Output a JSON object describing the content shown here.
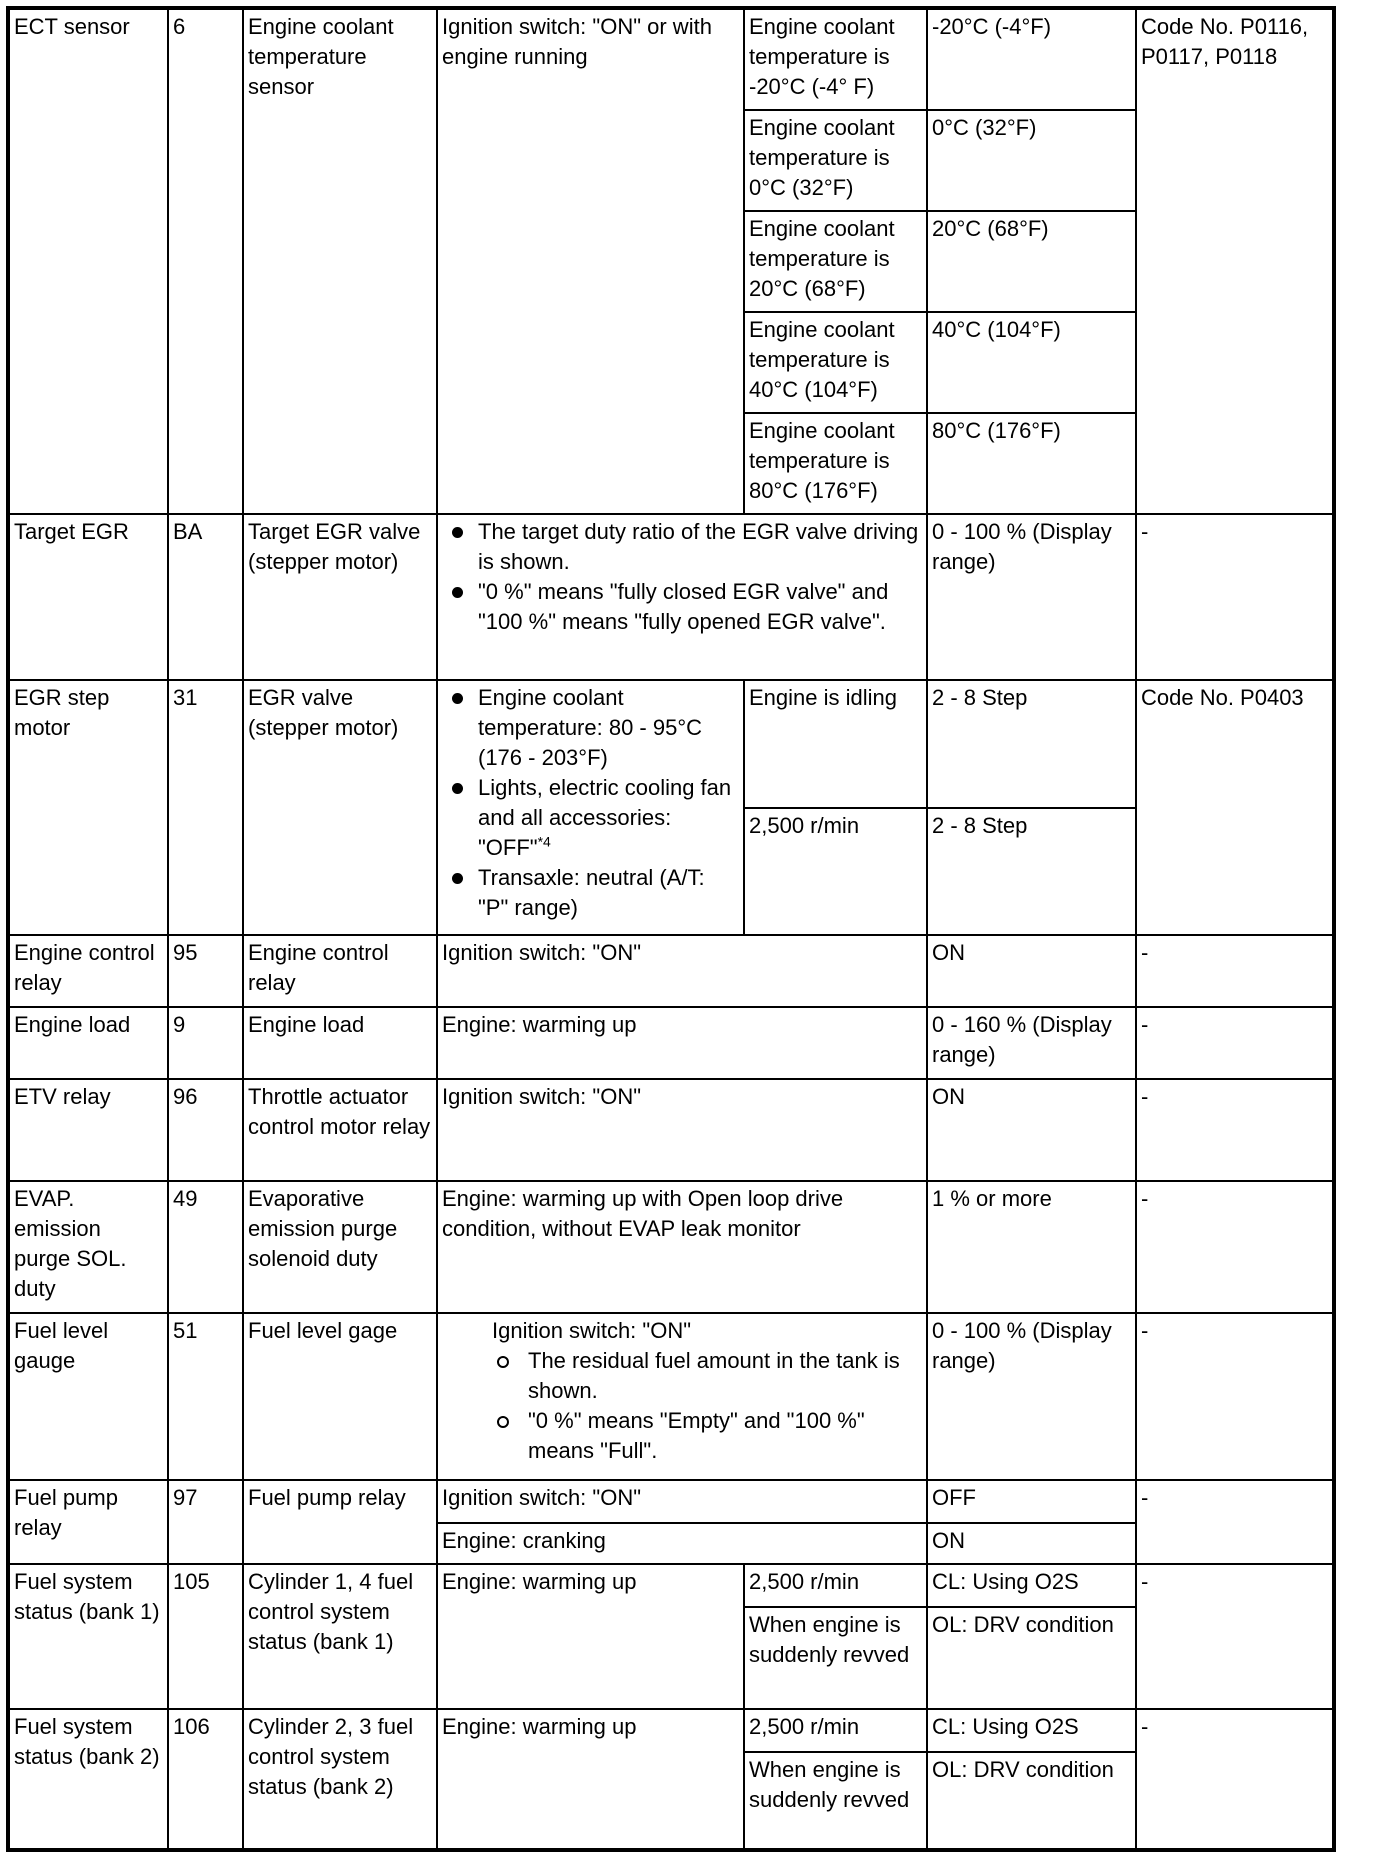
{
  "rows": {
    "ect": {
      "item": "ECT sensor",
      "id": "6",
      "component": "Engine coolant temperature sensor",
      "condition": "Ignition switch: \"ON\" or with engine running",
      "sub": [
        {
          "condition": "Engine coolant temperature is -20°C (-4° F)",
          "value": "-20°C (-4°F)"
        },
        {
          "condition": "Engine coolant temperature is 0°C (32°F)",
          "value": "0°C (32°F)"
        },
        {
          "condition": "Engine coolant temperature is 20°C (68°F)",
          "value": "20°C (68°F)"
        },
        {
          "condition": "Engine coolant temperature is 40°C (104°F)",
          "value": "40°C (104°F)"
        },
        {
          "condition": "Engine coolant temperature is 80°C (176°F)",
          "value": "80°C (176°F)"
        }
      ],
      "reference": "Code No. P0116, P0117, P0118"
    },
    "target_egr": {
      "item": "Target EGR",
      "id": "BA",
      "component": "Target EGR valve (stepper motor)",
      "bullets": [
        "The target duty ratio of the EGR valve driving is shown.",
        "\"0 %\" means \"fully closed EGR valve\" and \"100 %\" means \"fully opened EGR valve\"."
      ],
      "value": "0 - 100 % (Display range)",
      "reference": "-"
    },
    "egr_step": {
      "item": "EGR step motor",
      "id": "31",
      "component": "EGR valve (stepper motor)",
      "bullets": [
        "Engine coolant temperature: 80 - 95°C (176 - 203°F)",
        "Lights, electric cooling fan and all accessories: \"OFF\"",
        "Transaxle: neutral (A/T: \"P\" range)"
      ],
      "footnote": "*4",
      "sub": [
        {
          "condition": "Engine is idling",
          "value": "2 - 8 Step"
        },
        {
          "condition": "2,500 r/min",
          "value": "2 - 8 Step"
        }
      ],
      "reference": "Code No. P0403"
    },
    "ecr": {
      "item": "Engine control relay",
      "id": "95",
      "component": "Engine control relay",
      "condition": "Ignition switch: \"ON\"",
      "value": "ON",
      "reference": "-"
    },
    "load": {
      "item": "Engine load",
      "id": "9",
      "component": "Engine load",
      "condition": "Engine: warming up",
      "value": "0 - 160 % (Display range)",
      "reference": "-"
    },
    "etv": {
      "item": "ETV relay",
      "id": "96",
      "component": "Throttle actuator control motor relay",
      "condition": "Ignition switch: \"ON\"",
      "value": "ON",
      "reference": "-"
    },
    "evap": {
      "item": "EVAP. emission purge SOL. duty",
      "id": "49",
      "component": "Evaporative emission purge solenoid duty",
      "condition": "Engine: warming up with Open loop drive condition, without EVAP leak monitor",
      "value": "1 % or more",
      "reference": "-"
    },
    "fuel_level": {
      "item": "Fuel level gauge",
      "id": "51",
      "component": "Fuel level gage",
      "condition": "Ignition switch: \"ON\"",
      "bullets": [
        "The residual fuel amount in the tank is shown.",
        "\"0 %\" means \"Empty\" and \"100 %\" means \"Full\"."
      ],
      "value": "0 - 100 % (Display range)",
      "reference": "-"
    },
    "fuel_pump": {
      "item": "Fuel pump relay",
      "id": "97",
      "component": "Fuel pump relay",
      "sub": [
        {
          "condition": "Ignition switch: \"ON\"",
          "value": "OFF"
        },
        {
          "condition": "Engine: cranking",
          "value": "ON"
        }
      ],
      "reference": "-"
    },
    "fss1": {
      "item": "Fuel system status (bank 1)",
      "id": "105",
      "component": "Cylinder 1, 4 fuel control system status (bank 1)",
      "condition": "Engine: warming up",
      "sub": [
        {
          "condition": "2,500 r/min",
          "value": "CL: Using O2S"
        },
        {
          "condition": "When engine is suddenly revved",
          "value": "OL: DRV condition"
        }
      ],
      "reference": "-"
    },
    "fss2": {
      "item": "Fuel system status (bank 2)",
      "id": "106",
      "component": "Cylinder 2, 3 fuel control system status (bank 2)",
      "condition": "Engine: warming up",
      "sub": [
        {
          "condition": "2,500 r/min",
          "value": "CL: Using O2S"
        },
        {
          "condition": "When engine is suddenly revved",
          "value": "OL: DRV condition"
        }
      ],
      "reference": "-"
    }
  }
}
